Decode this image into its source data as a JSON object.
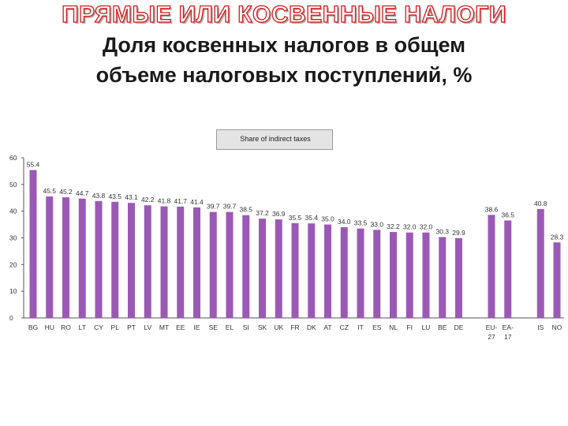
{
  "heading": "ПРЯМЫЕ ИЛИ КОСВЕННЫЕ НАЛОГИ",
  "subtitle_line1": "Доля косвенных налогов в общем",
  "subtitle_line2": "объеме налоговых поступлений, %",
  "colors": {
    "bar": "#9b59b6",
    "heading_stroke": "#d81818",
    "axis": "#555555"
  },
  "chart_data": {
    "type": "bar",
    "title": "Share of indirect taxes",
    "ylim": [
      0,
      60
    ],
    "yticks": [
      0,
      10,
      20,
      30,
      40,
      50,
      60
    ],
    "grid": false,
    "legend": "none",
    "categories": [
      {
        "line1": "BG",
        "line2": "",
        "value": 55.4,
        "label": "55.4"
      },
      {
        "line1": "HU",
        "line2": "",
        "value": 45.5,
        "label": "45.5"
      },
      {
        "line1": "RO",
        "line2": "",
        "value": 45.2,
        "label": "45.2"
      },
      {
        "line1": "LT",
        "line2": "",
        "value": 44.7,
        "label": "44.7"
      },
      {
        "line1": "CY",
        "line2": "",
        "value": 43.8,
        "label": "43.8"
      },
      {
        "line1": "PL",
        "line2": "",
        "value": 43.5,
        "label": "43.5"
      },
      {
        "line1": "PT",
        "line2": "",
        "value": 43.1,
        "label": "43.1"
      },
      {
        "line1": "LV",
        "line2": "",
        "value": 42.2,
        "label": "42.2"
      },
      {
        "line1": "MT",
        "line2": "",
        "value": 41.8,
        "label": "41.8"
      },
      {
        "line1": "EE",
        "line2": "",
        "value": 41.7,
        "label": "41.7"
      },
      {
        "line1": "IE",
        "line2": "",
        "value": 41.4,
        "label": "41.4"
      },
      {
        "line1": "SE",
        "line2": "",
        "value": 39.7,
        "label": "39.7"
      },
      {
        "line1": "EL",
        "line2": "",
        "value": 39.7,
        "label": "39.7"
      },
      {
        "line1": "SI",
        "line2": "",
        "value": 38.5,
        "label": "38.5"
      },
      {
        "line1": "SK",
        "line2": "",
        "value": 37.2,
        "label": "37.2"
      },
      {
        "line1": "UK",
        "line2": "",
        "value": 36.9,
        "label": "36.9"
      },
      {
        "line1": "FR",
        "line2": "",
        "value": 35.5,
        "label": "35.5"
      },
      {
        "line1": "DK",
        "line2": "",
        "value": 35.4,
        "label": "35.4"
      },
      {
        "line1": "AT",
        "line2": "",
        "value": 35.0,
        "label": "35.0"
      },
      {
        "line1": "CZ",
        "line2": "",
        "value": 34.0,
        "label": "34.0"
      },
      {
        "line1": "IT",
        "line2": "",
        "value": 33.5,
        "label": "33.5"
      },
      {
        "line1": "ES",
        "line2": "",
        "value": 33.0,
        "label": "33.0"
      },
      {
        "line1": "NL",
        "line2": "",
        "value": 32.2,
        "label": "32.2"
      },
      {
        "line1": "FI",
        "line2": "",
        "value": 32.0,
        "label": "32.0"
      },
      {
        "line1": "LU",
        "line2": "",
        "value": 32.0,
        "label": "32.0"
      },
      {
        "line1": "BE",
        "line2": "",
        "value": 30.3,
        "label": "30.3"
      },
      {
        "line1": "DE",
        "line2": "",
        "value": 29.9,
        "label": "29.9"
      },
      {
        "gap": true
      },
      {
        "line1": "EU-",
        "line2": "27",
        "value": 38.6,
        "label": "38.6"
      },
      {
        "line1": "EA-",
        "line2": "17",
        "value": 36.5,
        "label": "36.5"
      },
      {
        "gap": true
      },
      {
        "line1": "IS",
        "line2": "",
        "value": 40.8,
        "label": "40.8"
      },
      {
        "line1": "NO",
        "line2": "",
        "value": 28.3,
        "label": "28.3"
      }
    ]
  }
}
